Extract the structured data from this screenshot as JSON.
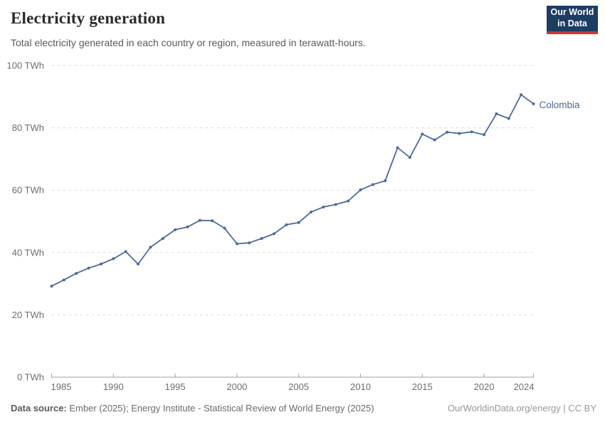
{
  "header": {
    "title": "Electricity generation",
    "subtitle": "Total electricity generated in each country or region, measured in terawatt-hours.",
    "logo": {
      "line1": "Our World",
      "line2": "in Data"
    }
  },
  "chart_data": {
    "type": "line",
    "title": "Electricity generation",
    "unit": "TWh",
    "xlabel": "",
    "ylabel": "TWh",
    "ylim": [
      0,
      100
    ],
    "xlim": [
      1985,
      2024
    ],
    "grid": "horizontal-dashed",
    "legend_position": "end-of-line",
    "yticks": [
      0,
      20,
      40,
      60,
      80,
      100
    ],
    "ytick_labels": [
      "0 TWh",
      "20 TWh",
      "40 TWh",
      "60 TWh",
      "80 TWh",
      "100 TWh"
    ],
    "xticks": [
      1985,
      1990,
      1995,
      2000,
      2005,
      2010,
      2015,
      2020,
      2024
    ],
    "xtick_labels": [
      "1985",
      "1990",
      "1995",
      "2000",
      "2005",
      "2010",
      "2015",
      "2020",
      "2024"
    ],
    "x": [
      1985,
      1986,
      1987,
      1988,
      1989,
      1990,
      1991,
      1992,
      1993,
      1994,
      1995,
      1996,
      1997,
      1998,
      1999,
      2000,
      2001,
      2002,
      2003,
      2004,
      2005,
      2006,
      2007,
      2008,
      2009,
      2010,
      2011,
      2012,
      2013,
      2014,
      2015,
      2016,
      2017,
      2018,
      2019,
      2020,
      2021,
      2022,
      2023,
      2024
    ],
    "series": [
      {
        "name": "Colombia",
        "color": "#4C6A9C",
        "values": [
          29.2,
          31.2,
          33.3,
          35.0,
          36.3,
          38.0,
          40.3,
          36.3,
          41.7,
          44.5,
          47.3,
          48.2,
          50.3,
          50.2,
          47.8,
          42.8,
          43.1,
          44.5,
          46.0,
          48.9,
          49.6,
          53.0,
          54.6,
          55.4,
          56.5,
          60.1,
          61.8,
          63.0,
          73.6,
          70.5,
          78.0,
          76.1,
          78.6,
          78.2,
          78.7,
          77.8,
          84.5,
          83.0,
          90.6,
          87.7
        ]
      }
    ]
  },
  "footer": {
    "source_label": "Data source:",
    "source_text": " Ember (2025); Energy Institute - Statistical Review of World Energy (2025)",
    "credit": "OurWorldinData.org/energy | CC BY"
  },
  "colors": {
    "series_line": "#4C6A9C",
    "logo_background": "#1d3d63",
    "logo_accent": "#cf342e",
    "gridline": "#dddddd",
    "axis": "#a1a1a1",
    "tick_label": "#6e6e6e"
  }
}
